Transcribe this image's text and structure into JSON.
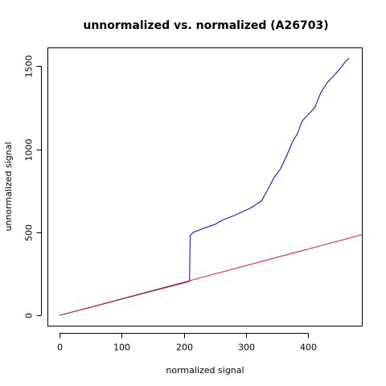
{
  "chart_data": {
    "type": "line",
    "title": "unnormalized vs. normalized (A26703)",
    "xlabel": "normalized signal",
    "ylabel": "unnormalized signal",
    "xlim": [
      -18,
      486
    ],
    "ylim": [
      -62,
      1608
    ],
    "x_ticks": [
      0,
      100,
      200,
      300,
      400
    ],
    "y_ticks": [
      0,
      500,
      1000,
      1500
    ],
    "series": [
      {
        "color": "#0000cc",
        "points": [
          [
            0,
            0
          ],
          [
            50,
            49
          ],
          [
            100,
            98
          ],
          [
            150,
            147
          ],
          [
            200,
            196
          ],
          [
            209,
            205
          ],
          [
            210,
            480
          ],
          [
            215,
            500
          ],
          [
            230,
            522
          ],
          [
            250,
            548
          ],
          [
            260,
            570
          ],
          [
            280,
            600
          ],
          [
            295,
            625
          ],
          [
            308,
            648
          ],
          [
            315,
            665
          ],
          [
            325,
            690
          ],
          [
            335,
            760
          ],
          [
            345,
            830
          ],
          [
            355,
            880
          ],
          [
            365,
            960
          ],
          [
            375,
            1050
          ],
          [
            382,
            1090
          ],
          [
            390,
            1170
          ],
          [
            400,
            1210
          ],
          [
            410,
            1250
          ],
          [
            420,
            1340
          ],
          [
            430,
            1400
          ],
          [
            440,
            1440
          ],
          [
            450,
            1480
          ],
          [
            458,
            1520
          ],
          [
            465,
            1548
          ]
        ]
      },
      {
        "color": "#dd2222",
        "points": [
          [
            0,
            0
          ],
          [
            486,
            486
          ]
        ]
      }
    ]
  }
}
